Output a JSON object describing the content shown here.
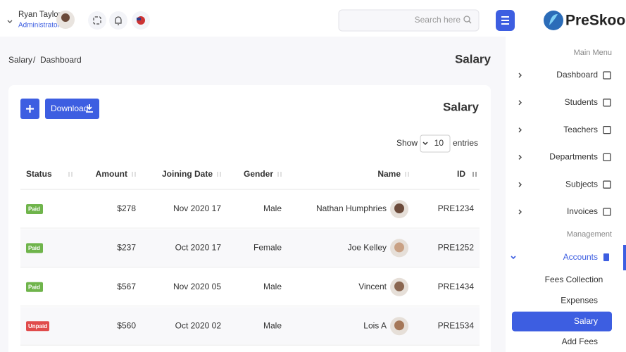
{
  "header": {
    "user_name": "Ryan Taylor",
    "user_role": "Administrator",
    "search_placeholder": "Search here",
    "logo": "PreSkool"
  },
  "breadcrumb": {
    "items": [
      "Salary",
      "Dashboard"
    ],
    "separator": "/",
    "page_title": "Salary"
  },
  "card": {
    "download_button": "Download",
    "title": "Salary",
    "show_label": "Show",
    "entries_value": "10",
    "entries_label": "entries"
  },
  "table": {
    "columns": [
      "Status",
      "Amount",
      "Joining Date",
      "Gender",
      "Name",
      "ID"
    ],
    "rows": [
      [
        "Paid",
        "$278",
        "Nov 2020 17",
        "Male",
        "Nathan Humphries",
        "PRE1234"
      ],
      [
        "Paid",
        "$237",
        "Oct 2020 17",
        "Female",
        "Joe Kelley",
        "PRE1252"
      ],
      [
        "Paid",
        "$567",
        "Nov 2020 05",
        "Male",
        "Vincent",
        "PRE1434"
      ],
      [
        "Unpaid",
        "$560",
        "Oct 2020 02",
        "Male",
        "Lois A",
        "PRE1534"
      ]
    ]
  },
  "sidebar": {
    "main_menu_label": "Main Menu",
    "items": [
      "Dashboard",
      "Students",
      "Teachers",
      "Departments",
      "Subjects",
      "Invoices"
    ],
    "management_label": "Management",
    "accounts": "Accounts",
    "submenu": [
      "Fees Collection",
      "Expenses",
      "Salary",
      "Add Fees"
    ]
  }
}
